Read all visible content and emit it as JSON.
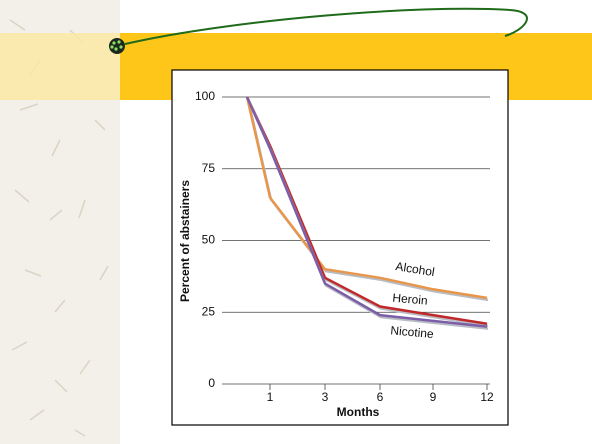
{
  "chart_data": {
    "type": "line",
    "x_label": "Months",
    "y_label": "Percent of abstainers",
    "categories": [
      null,
      "1",
      "3",
      "6",
      "9",
      "12"
    ],
    "series": [
      {
        "name": "Alcohol",
        "color": "#e8964a",
        "values": [
          100,
          65,
          40,
          37,
          33,
          30
        ]
      },
      {
        "name": "Heroin",
        "color": "#c0282a",
        "values": [
          100,
          83,
          37,
          27,
          24,
          21
        ]
      },
      {
        "name": "Nicotine",
        "color": "#7b5ea7",
        "values": [
          100,
          82,
          35,
          24,
          22,
          20
        ]
      }
    ],
    "ylim": [
      0,
      100
    ],
    "yticks": [
      0,
      25,
      50,
      75,
      100
    ],
    "grid": true
  }
}
